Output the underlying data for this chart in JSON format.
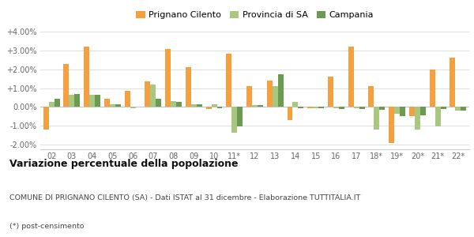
{
  "categories": [
    "02",
    "03",
    "04",
    "05",
    "06",
    "07",
    "08",
    "09",
    "10",
    "11*",
    "12",
    "13",
    "14",
    "15",
    "16",
    "17",
    "18*",
    "19*",
    "20*",
    "21*",
    "22*"
  ],
  "prignano": [
    -1.2,
    2.3,
    3.2,
    0.45,
    0.85,
    1.35,
    3.1,
    2.1,
    -0.1,
    2.85,
    1.1,
    1.4,
    -0.7,
    -0.05,
    1.6,
    3.2,
    1.1,
    -1.9,
    -0.5,
    2.0,
    2.6
  ],
  "provincia": [
    0.25,
    0.65,
    0.65,
    0.15,
    -0.05,
    1.2,
    0.3,
    0.15,
    0.15,
    -1.35,
    0.1,
    1.1,
    0.28,
    -0.05,
    -0.08,
    -0.05,
    -1.2,
    -0.35,
    -1.2,
    -1.05,
    -0.18
  ],
  "campania": [
    0.45,
    0.7,
    0.65,
    0.15,
    0.0,
    0.45,
    0.25,
    0.15,
    -0.07,
    -1.05,
    0.1,
    1.75,
    -0.07,
    -0.08,
    -0.1,
    -0.1,
    -0.15,
    -0.5,
    -0.45,
    -0.12,
    -0.2
  ],
  "color_prignano": "#f5a040",
  "color_provincia": "#a8c880",
  "color_campania": "#6a9b50",
  "title": "Variazione percentuale della popolazione",
  "subtitle": "COMUNE DI PRIGNANO CILENTO (SA) - Dati ISTAT al 31 dicembre - Elaborazione TUTTITALIA.IT",
  "footnote": "(*) post-censimento",
  "legend_labels": [
    "Prignano Cilento",
    "Provincia di SA",
    "Campania"
  ],
  "ylim": [
    -2.25,
    4.3
  ],
  "yticks": [
    -2.0,
    -1.0,
    0.0,
    1.0,
    2.0,
    3.0,
    4.0
  ],
  "ytick_labels": [
    "-2.00%",
    "-1.00%",
    "0.00%",
    "+1.00%",
    "+2.00%",
    "+3.00%",
    "+4.00%"
  ],
  "background_color": "#ffffff",
  "grid_color": "#e0e0e0"
}
